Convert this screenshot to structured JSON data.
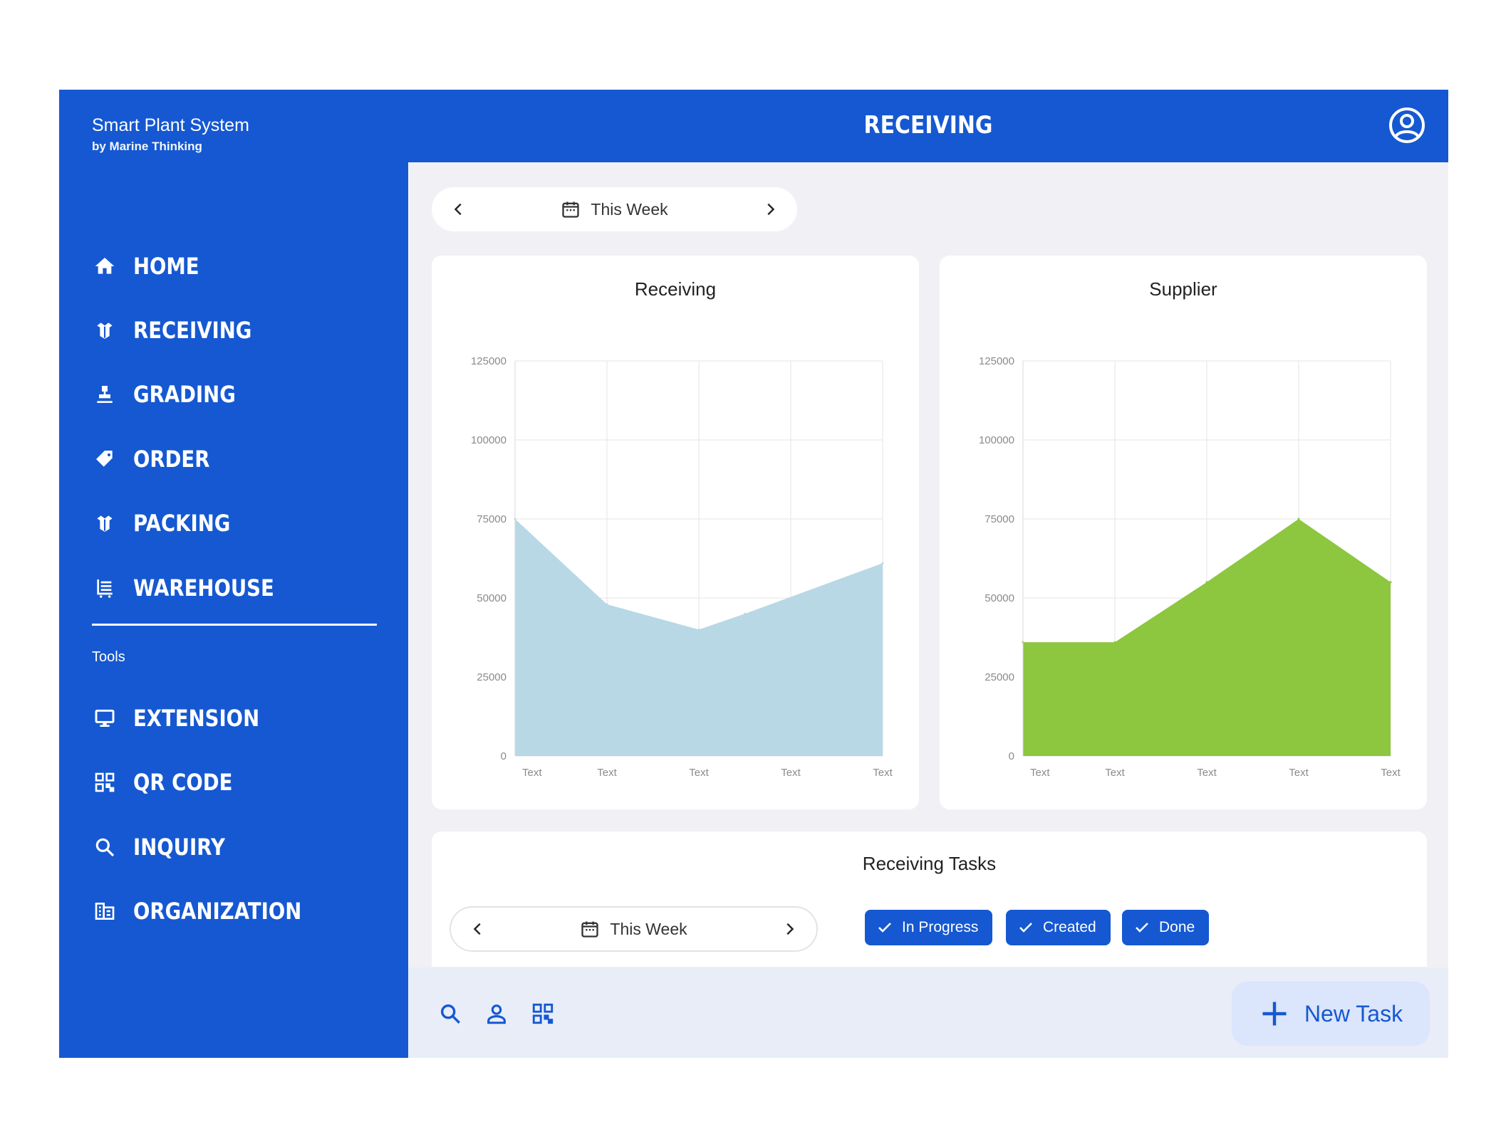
{
  "brand": {
    "title": "Smart Plant System",
    "subtitle": "by Marine Thinking"
  },
  "header": {
    "title": "RECEIVING",
    "account_icon": "account-circle-icon"
  },
  "sidebar": {
    "items": [
      {
        "label": "HOME",
        "icon": "home-icon"
      },
      {
        "label": "RECEIVING",
        "icon": "package-open-icon"
      },
      {
        "label": "GRADING",
        "icon": "stamp-icon"
      },
      {
        "label": "ORDER",
        "icon": "tag-icon"
      },
      {
        "label": "PACKING",
        "icon": "package-open-icon"
      },
      {
        "label": "WAREHOUSE",
        "icon": "cart-list-icon"
      }
    ],
    "tools_label": "Tools",
    "tools": [
      {
        "label": "EXTENSION",
        "icon": "monitor-icon"
      },
      {
        "label": "QR CODE",
        "icon": "qr-code-icon"
      },
      {
        "label": "INQUIRY",
        "icon": "search-icon"
      },
      {
        "label": "ORGANIZATION",
        "icon": "building-icon"
      }
    ]
  },
  "week_picker": {
    "label": "This Week"
  },
  "tasks": {
    "title": "Receiving Tasks",
    "week_label": "This Week",
    "chips": [
      {
        "label": "In Progress"
      },
      {
        "label": "Created"
      },
      {
        "label": "Done"
      }
    ]
  },
  "bottom_bar": {
    "icons": [
      "search-icon",
      "person-icon",
      "qr-code-icon"
    ],
    "new_task_label": "New Task"
  },
  "colors": {
    "primary": "#1558d1",
    "receiving_fill": "#b8d8e6",
    "supplier_fill": "#8dc63f"
  },
  "chart_data": [
    {
      "type": "area",
      "title": "Receiving",
      "categories": [
        "Text",
        "Text",
        "Text",
        "Text",
        "Text"
      ],
      "x": [
        0,
        1,
        2,
        2.5,
        4
      ],
      "values": [
        75000,
        48000,
        40000,
        45000,
        61000
      ],
      "yticks": [
        0,
        25000,
        50000,
        75000,
        100000,
        125000
      ],
      "ylim": [
        0,
        125000
      ],
      "grid": true,
      "color": "#b8d8e6"
    },
    {
      "type": "area",
      "title": "Supplier",
      "categories": [
        "Text",
        "Text",
        "Text",
        "Text",
        "Text"
      ],
      "x": [
        0,
        1,
        2,
        3,
        4
      ],
      "values": [
        36000,
        36000,
        55000,
        75000,
        55000
      ],
      "yticks": [
        0,
        25000,
        50000,
        75000,
        100000,
        125000
      ],
      "ylim": [
        0,
        125000
      ],
      "grid": true,
      "color": "#8dc63f"
    }
  ]
}
